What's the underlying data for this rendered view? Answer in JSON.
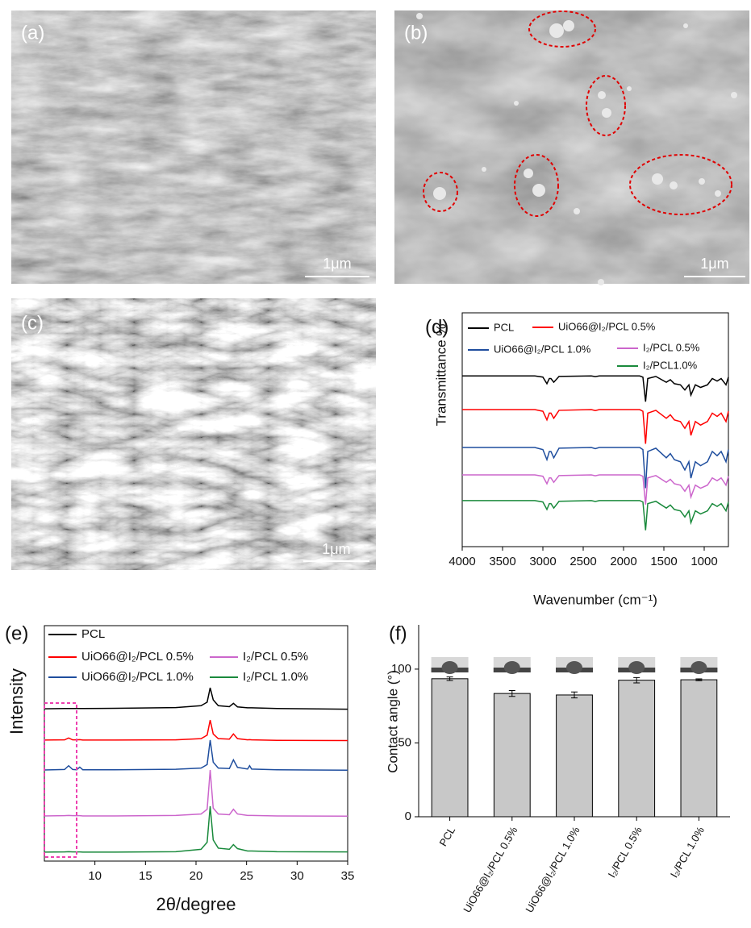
{
  "images": [
    {
      "label": "(a)",
      "scale_bar": "1μm"
    },
    {
      "label": "(b)",
      "scale_bar": "1μm"
    },
    {
      "label": "(c)",
      "scale_bar": "1μm"
    }
  ],
  "chart_data": [
    {
      "type": "line",
      "panel_label": "(d)",
      "xlabel": "Wavenumber (cm⁻¹)",
      "ylabel": "Transmittance %",
      "x": [
        4000,
        3500,
        3100,
        3000,
        2950,
        2920,
        2900,
        2865,
        2800,
        2400,
        2350,
        2300,
        1800,
        1760,
        1727,
        1700,
        1600,
        1470,
        1420,
        1370,
        1295,
        1240,
        1190,
        1165,
        1110,
        1045,
        960,
        900,
        840,
        790,
        730,
        700
      ],
      "xlim": [
        4000,
        700
      ],
      "xticks": [
        4000,
        3500,
        3000,
        2500,
        2000,
        1500,
        1000
      ],
      "ylim": [
        0,
        100
      ],
      "series": [
        {
          "name": "PCL",
          "color": "#000000",
          "values": [
            73,
            73,
            73,
            72.5,
            69.7,
            71.9,
            71.9,
            70.3,
            72.8,
            73,
            72.7,
            73,
            73,
            72.5,
            62,
            71.9,
            72.8,
            70.3,
            71.4,
            69.7,
            69.2,
            67,
            69.2,
            64.8,
            69.2,
            68.1,
            69.2,
            71.9,
            70.8,
            71.9,
            69.2,
            72.5
          ]
        },
        {
          "name": "UiO66@I₂/PCL 0.5%",
          "color": "#ff0000",
          "values": [
            58.6,
            58.6,
            58.6,
            57.9,
            54.2,
            57.1,
            57.1,
            54.9,
            58.3,
            58.6,
            58.2,
            58.6,
            58.6,
            57.9,
            44,
            57.1,
            58.3,
            54.9,
            56.4,
            54.2,
            53.5,
            50.6,
            53.5,
            47.6,
            53.5,
            52,
            53.5,
            57.1,
            55.7,
            57.1,
            53.5,
            57.9
          ]
        },
        {
          "name": "UiO66@I₂/PCL 1.0%",
          "color": "#1f4e9e",
          "values": [
            42.4,
            42.4,
            42.4,
            41.5,
            37.2,
            40.7,
            40.7,
            38,
            42.1,
            42.4,
            41.9,
            42.4,
            42.4,
            41.5,
            25,
            40.7,
            42.1,
            38,
            39.8,
            37.2,
            36.3,
            32.8,
            36.3,
            29.3,
            36.3,
            34.6,
            36.3,
            40.7,
            38.9,
            40.7,
            36.3,
            41.5
          ]
        },
        {
          "name": "I₂/PCL 0.5%",
          "color": "#cc66cc",
          "values": [
            30.7,
            30.7,
            30.7,
            30.1,
            26.9,
            29.4,
            29.4,
            27.5,
            30.4,
            30.7,
            30.3,
            30.7,
            30.7,
            30.1,
            18,
            29.4,
            30.4,
            27.5,
            28.8,
            26.9,
            26.3,
            23.7,
            26.3,
            21.2,
            26.3,
            25,
            26.3,
            29.4,
            28.2,
            29.4,
            26.3,
            30.1
          ]
        },
        {
          "name": "I₂/PCL1.0%",
          "color": "#1a8a3c",
          "values": [
            19.7,
            19.7,
            19.7,
            19.1,
            15.9,
            18.4,
            18.4,
            16.5,
            19.4,
            19.7,
            19.3,
            19.7,
            19.7,
            19.1,
            7,
            18.4,
            19.4,
            16.5,
            17.8,
            15.9,
            15.3,
            12.7,
            15.3,
            10.2,
            15.3,
            14,
            15.3,
            18.4,
            17.2,
            18.4,
            15.3,
            19.1
          ]
        }
      ]
    },
    {
      "type": "line",
      "panel_label": "(e)",
      "xlabel": "2θ/degree",
      "ylabel": "Intensity",
      "x": [
        5,
        7,
        7.4,
        7.8,
        8.2,
        8.5,
        8.8,
        12,
        18,
        20.5,
        21.1,
        21.4,
        21.7,
        22.2,
        23.3,
        23.7,
        24.1,
        25.1,
        25.3,
        25.5,
        28,
        35
      ],
      "xlim": [
        5,
        35
      ],
      "xticks": [
        10,
        15,
        20,
        25,
        30,
        35
      ],
      "ylim": [
        0,
        100
      ],
      "series": [
        {
          "name": "PCL",
          "color": "#000000",
          "values": [
            64.7,
            64.8,
            64.8,
            64.8,
            64.8,
            64.8,
            64.8,
            64.9,
            65.2,
            66,
            67.5,
            73.6,
            68.5,
            66,
            65.6,
            67,
            65.5,
            65.1,
            65.1,
            65.1,
            64.8,
            64.5
          ]
        },
        {
          "name": "UiO66@I₂/PCL 0.5%",
          "color": "#ff0000",
          "values": [
            51.4,
            51.5,
            52.3,
            51.5,
            51.5,
            51.6,
            51.4,
            51.4,
            51.5,
            52,
            53.5,
            59.9,
            54,
            52,
            51.8,
            54,
            52,
            51.5,
            51.6,
            51.5,
            51.3,
            51.2
          ]
        },
        {
          "name": "UiO66@I₂/PCL 1.0%",
          "color": "#1f4e9e",
          "values": [
            38.7,
            38.9,
            40.5,
            38.9,
            38.8,
            39.9,
            38.8,
            38.8,
            39,
            39.5,
            41,
            51.4,
            42,
            39.5,
            39.3,
            43,
            39.8,
            39.1,
            40.5,
            39.1,
            38.8,
            38.6
          ]
        },
        {
          "name": "I₂/PCL 0.5%",
          "color": "#cc66cc",
          "values": [
            19.2,
            19.3,
            19.4,
            19.3,
            19.3,
            19.3,
            19.2,
            19.2,
            19.4,
            20,
            22,
            38.7,
            22.5,
            20,
            19.7,
            22,
            20,
            19.4,
            19.4,
            19.4,
            19.2,
            19.1
          ]
        },
        {
          "name": "I₂/PCL 1.0%",
          "color": "#1a8a3c",
          "values": [
            3.8,
            3.9,
            4,
            3.9,
            3.9,
            3.9,
            3.8,
            3.8,
            4,
            5,
            8,
            23.3,
            9,
            5.5,
            5,
            7,
            5.3,
            4.3,
            4.3,
            4.3,
            4,
            3.9
          ]
        }
      ]
    },
    {
      "type": "bar",
      "panel_label": "(f)",
      "ylabel": "Contact angle (°)",
      "categories": [
        "PCL",
        "UiO66@I₂/PCL 0.5%",
        "UiO66@I₂/PCL 1.0%",
        "I₂/PCL 0.5%",
        "I₂/PCL 1.0%"
      ],
      "values": [
        93.5,
        83.5,
        82.5,
        92.5,
        92.8
      ],
      "errors": [
        1.2,
        2,
        2,
        1.8,
        0.6
      ],
      "color": "#c8c8c8",
      "ylim": [
        0,
        130
      ],
      "yticks": [
        0,
        50,
        100
      ]
    }
  ]
}
